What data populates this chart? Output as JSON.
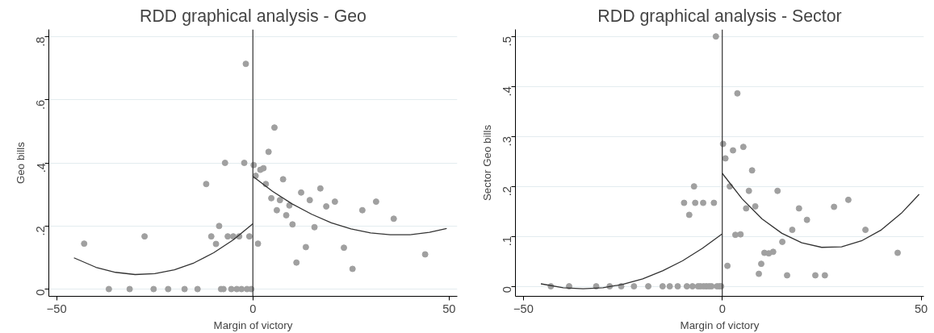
{
  "chart_data": [
    {
      "type": "scatter",
      "title": "RDD graphical analysis - Geo",
      "xlabel": "Margin of victory",
      "ylabel": "Geo bills",
      "xlim": [
        -52,
        52.1
      ],
      "ylim": [
        -0.023,
        0.823
      ],
      "xticks": [
        -50,
        0,
        50
      ],
      "yticks": [
        {
          "value": 0,
          "label": "0"
        },
        {
          "value": 0.2,
          "label": ".2"
        },
        {
          "value": 0.4,
          "label": ".4"
        },
        {
          "value": 0.6,
          "label": ".6"
        },
        {
          "value": 0.8,
          "label": ".8"
        }
      ],
      "grid": "y",
      "ref_lines": [
        {
          "axis": "x",
          "value": 0,
          "color": "#333333"
        }
      ],
      "series": [
        {
          "marker": "circle",
          "color": "#a0a0a0",
          "x": [
            -43,
            -36.7,
            -31.4,
            -27.6,
            -25.3,
            -21.6,
            -17.4,
            -14.1,
            -11.9,
            -10.6,
            -9.4,
            -8.6,
            -8.1,
            -7.5,
            -7.1,
            -6.4,
            -5.5,
            -5.0,
            -4.1,
            -3.5,
            -2.9,
            -2.2,
            -1.8,
            -1.5,
            -0.9,
            -0.4,
            0.2,
            0.7,
            1.3,
            1.9,
            2.7,
            3.3,
            4.0,
            4.7,
            5.5,
            6.1,
            6.9,
            7.7,
            8.5,
            9.3,
            10.1,
            11.1,
            12.3,
            13.5,
            14.5,
            15.7,
            17.2,
            18.7,
            20.9,
            23.2,
            25.4,
            27.9,
            31.4,
            35.9,
            43.9
          ],
          "values": [
            0.144,
            0,
            0,
            0.167,
            0,
            0,
            0,
            0,
            0.333,
            0.167,
            0.143,
            0.2,
            0,
            0,
            0.4,
            0.167,
            0,
            0.167,
            0,
            0.167,
            0,
            0.4,
            0.714,
            0,
            0.167,
            0,
            0.393,
            0.359,
            0.144,
            0.378,
            0.383,
            0.333,
            0.435,
            0.288,
            0.512,
            0.25,
            0.282,
            0.348,
            0.234,
            0.265,
            0.205,
            0.084,
            0.306,
            0.133,
            0.282,
            0.196,
            0.319,
            0.262,
            0.277,
            0.131,
            0.064,
            0.25,
            0.277,
            0.223,
            0.11
          ]
        },
        {
          "type": "line",
          "color": "#333333",
          "x": [
            -45.6,
            -40,
            -35,
            -30,
            -25,
            -20,
            -15,
            -10,
            -5,
            0
          ],
          "values": [
            0.099,
            0.069,
            0.053,
            0.046,
            0.049,
            0.061,
            0.083,
            0.115,
            0.156,
            0.207
          ]
        },
        {
          "type": "line",
          "color": "#333333",
          "x": [
            0,
            5,
            10,
            15,
            20,
            25,
            30,
            35,
            40,
            45,
            49.4
          ],
          "values": [
            0.357,
            0.31,
            0.27,
            0.237,
            0.21,
            0.191,
            0.178,
            0.172,
            0.172,
            0.18,
            0.192
          ]
        }
      ]
    },
    {
      "type": "scatter",
      "title": "RDD graphical analysis - Sector",
      "xlabel": "Margin of victory",
      "ylabel": "Sector Geo bills",
      "xlim": [
        -52,
        50.7
      ],
      "ylim": [
        -0.02,
        0.514
      ],
      "xticks": [
        -50,
        0,
        50
      ],
      "yticks": [
        {
          "value": 0,
          "label": "0"
        },
        {
          "value": 0.1,
          "label": ".1"
        },
        {
          "value": 0.2,
          "label": ".2"
        },
        {
          "value": 0.3,
          "label": ".3"
        },
        {
          "value": 0.4,
          "label": ".4"
        },
        {
          "value": 0.5,
          "label": ".5"
        }
      ],
      "grid": "y",
      "ref_lines": [
        {
          "axis": "x",
          "value": 0,
          "color": "#333333"
        }
      ],
      "series": [
        {
          "marker": "circle",
          "color": "#a0a0a0",
          "x": [
            -43.1,
            -38.5,
            -31.7,
            -28.3,
            -25.4,
            -22.2,
            -18.6,
            -15.0,
            -13.2,
            -11.2,
            -9.6,
            -8.9,
            -8.3,
            -7.5,
            -7.1,
            -6.8,
            -6.1,
            -5.5,
            -4.8,
            -4.7,
            -4.0,
            -3.3,
            -2.7,
            -2.1,
            -1.6,
            -1.3,
            -0.7,
            -0.3,
            0.2,
            0.8,
            1.3,
            1.9,
            2.7,
            3.3,
            3.8,
            4.6,
            5.3,
            6.0,
            6.7,
            7.5,
            8.3,
            9.2,
            9.8,
            10.6,
            11.7,
            12.8,
            13.9,
            15.1,
            16.3,
            17.6,
            19.3,
            21.3,
            23.4,
            25.8,
            28.1,
            31.7,
            36.0,
            44.1
          ],
          "values": [
            0,
            0,
            0,
            0,
            0,
            0,
            0,
            0,
            0,
            0,
            0.167,
            0,
            0.143,
            0,
            0.2,
            0.167,
            0,
            0,
            0.167,
            0,
            0,
            0,
            0,
            0.167,
            0.5,
            0,
            0,
            0,
            0.285,
            0.256,
            0.041,
            0.2,
            0.272,
            0.103,
            0.386,
            0.104,
            0.279,
            0.156,
            0.191,
            0.232,
            0.16,
            0.025,
            0.045,
            0.067,
            0.066,
            0.069,
            0.191,
            0.089,
            0.022,
            0.113,
            0.156,
            0.133,
            0.022,
            0.022,
            0.159,
            0.173,
            0.113,
            0.067
          ]
        },
        {
          "type": "line",
          "color": "#333333",
          "x": [
            -45.6,
            -40,
            -35,
            -30,
            -25,
            -20,
            -15,
            -10,
            -5,
            0
          ],
          "values": [
            0.005,
            -0.003,
            -0.005,
            -0.003,
            0.004,
            0.015,
            0.031,
            0.051,
            0.076,
            0.105
          ]
        },
        {
          "type": "line",
          "color": "#333333",
          "x": [
            0,
            5,
            10,
            15,
            20,
            25,
            30,
            35,
            40,
            45,
            49.5
          ],
          "values": [
            0.226,
            0.175,
            0.135,
            0.106,
            0.087,
            0.078,
            0.079,
            0.091,
            0.113,
            0.146,
            0.184
          ]
        }
      ]
    }
  ]
}
